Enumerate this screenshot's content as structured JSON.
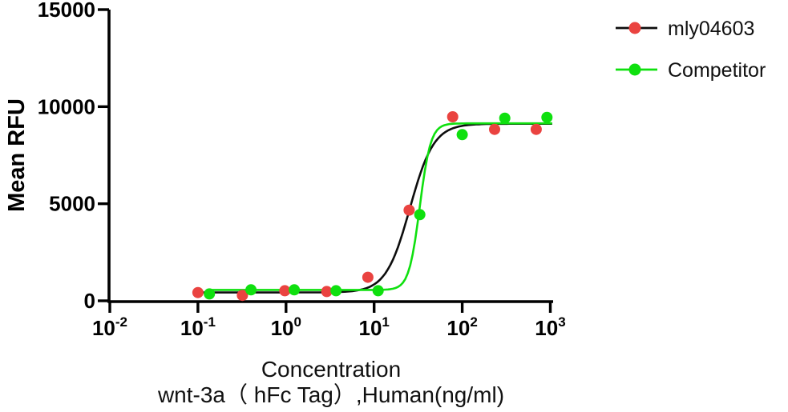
{
  "figure": {
    "background": "#ffffff",
    "text_color": "#000000",
    "y_axis": {
      "label": "Mean RFU",
      "ticks": [
        0,
        5000,
        10000,
        15000
      ],
      "tick_labels": [
        "0",
        "5000",
        "10000",
        "15000"
      ],
      "min": 0,
      "max": 15000
    },
    "x_axis": {
      "title_line1": "Concentration",
      "title_line2": "wnt-3a（ hFc Tag）,Human(ng/ml)",
      "scale": "log10",
      "tick_base": "10",
      "tick_exponents": [
        "-2",
        "-1",
        "0",
        "1",
        "2",
        "3"
      ]
    },
    "legend": [
      {
        "label": "mly04603",
        "line_color": "#0d0d0d",
        "marker_color": "#ea4340"
      },
      {
        "label": "Competitor",
        "line_color": "#0fe00f",
        "marker_color": "#0fe00f"
      }
    ]
  },
  "chart_data": {
    "type": "scatter",
    "title": "",
    "xlabel": "Concentration wnt-3a（ hFc Tag）,Human(ng/ml)",
    "ylabel": "Mean RFU",
    "x_scale": "log10",
    "xlim": [
      0.01,
      1000
    ],
    "ylim": [
      0,
      15000
    ],
    "grid": false,
    "legend_position": "top-right",
    "series": [
      {
        "name": "mly04603",
        "marker_color": "#ea4340",
        "line_color": "#0d0d0d",
        "x": [
          0.1,
          0.32,
          0.97,
          2.9,
          8.5,
          25,
          78,
          233,
          692
        ],
        "y": [
          425,
          280,
          520,
          480,
          1210,
          4670,
          9480,
          8830,
          8830
        ],
        "fit_4pl": {
          "bottom": 430,
          "top": 9120,
          "ec50": 25.5,
          "hill": 3.2
        }
      },
      {
        "name": "Competitor",
        "marker_color": "#0fe00f",
        "line_color": "#0fe00f",
        "x": [
          0.135,
          0.4,
          1.24,
          3.7,
          11.1,
          33,
          100,
          304,
          915
        ],
        "y": [
          355,
          565,
          565,
          520,
          520,
          4440,
          8560,
          9410,
          9450
        ],
        "fit_4pl": {
          "bottom": 560,
          "top": 9140,
          "ec50": 33,
          "hill": 7
        }
      }
    ]
  }
}
